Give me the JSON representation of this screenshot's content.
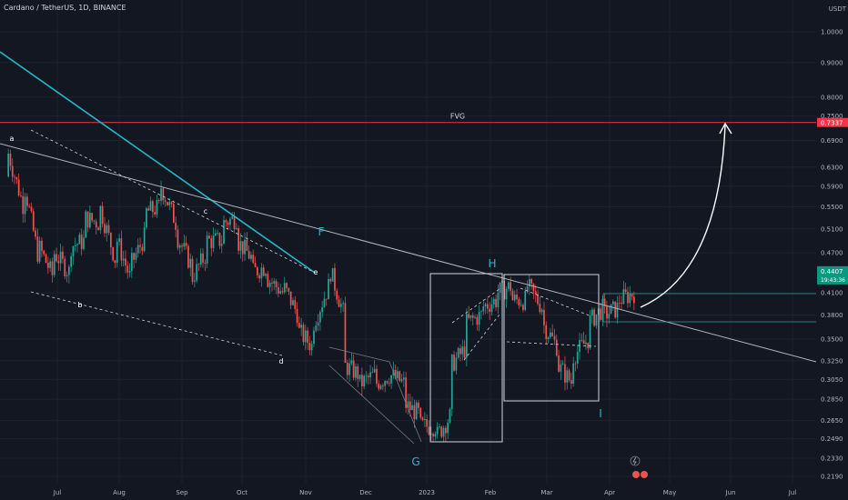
{
  "header": {
    "symbol_line": "Cardano / TetherUS, 1D, BINANCE"
  },
  "chart_data": {
    "type": "candlestick",
    "symbol": "Cardano / TetherUS",
    "interval": "1D",
    "exchange": "BINANCE",
    "y_unit": "USDT",
    "y_scale": "log",
    "y_ticks": [
      "1.0000",
      "0.9000",
      "0.8000",
      "0.7500",
      "0.6900",
      "0.6300",
      "0.5900",
      "0.5500",
      "0.5100",
      "0.4700",
      "0.4100",
      "0.3800",
      "0.3500",
      "0.3250",
      "0.3050",
      "0.2850",
      "0.2650",
      "0.2490",
      "0.2330",
      "0.2190"
    ],
    "x_ticks": [
      "Jul",
      "Aug",
      "Sep",
      "Oct",
      "Nov",
      "Dec",
      "2023",
      "Feb",
      "Mar",
      "Apr",
      "May",
      "Jun",
      "Jul"
    ],
    "last_price": "0.4407",
    "countdown": "19:43:36",
    "fvg_level": "0.7337",
    "fvg_label": "FVG",
    "point_labels": [
      "a",
      "b",
      "c",
      "d",
      "e",
      "F",
      "G",
      "H",
      "I"
    ],
    "colors": {
      "background": "#131722",
      "up": "#26a69a",
      "down": "#ef5350",
      "fvg": "#f23645",
      "trend": "#22b8c9",
      "grid": "#1e222d",
      "text": "#b2b5be"
    },
    "price_path": [
      [
        0.61,
        0.66
      ],
      [
        0.55,
        0.6
      ],
      [
        0.46,
        0.48
      ],
      [
        0.43,
        0.47
      ],
      [
        0.44,
        0.48
      ],
      [
        0.49,
        0.53
      ],
      [
        0.52,
        0.55
      ],
      [
        0.46,
        0.5
      ],
      [
        0.43,
        0.45
      ],
      [
        0.5,
        0.54
      ],
      [
        0.55,
        0.59
      ],
      [
        0.52,
        0.5
      ],
      [
        0.45,
        0.43
      ],
      [
        0.47,
        0.49
      ],
      [
        0.49,
        0.52
      ],
      [
        0.53,
        0.49
      ],
      [
        0.46,
        0.44
      ],
      [
        0.45,
        0.43
      ],
      [
        0.41,
        0.42
      ],
      [
        0.38,
        0.36
      ],
      [
        0.34,
        0.37
      ],
      [
        0.42,
        0.45
      ],
      [
        0.38,
        0.32
      ],
      [
        0.31,
        0.3
      ],
      [
        0.31,
        0.3
      ],
      [
        0.31,
        0.31
      ],
      [
        0.3,
        0.28
      ],
      [
        0.27,
        0.26
      ],
      [
        0.26,
        0.25
      ],
      [
        0.27,
        0.32
      ],
      [
        0.34,
        0.37
      ],
      [
        0.38,
        0.39
      ],
      [
        0.4,
        0.41
      ],
      [
        0.42,
        0.4
      ],
      [
        0.4,
        0.42
      ],
      [
        0.39,
        0.37
      ],
      [
        0.34,
        0.32
      ],
      [
        0.3,
        0.33
      ],
      [
        0.35,
        0.37
      ],
      [
        0.39,
        0.38
      ],
      [
        0.39,
        0.4
      ],
      [
        0.41,
        0.44
      ]
    ]
  }
}
